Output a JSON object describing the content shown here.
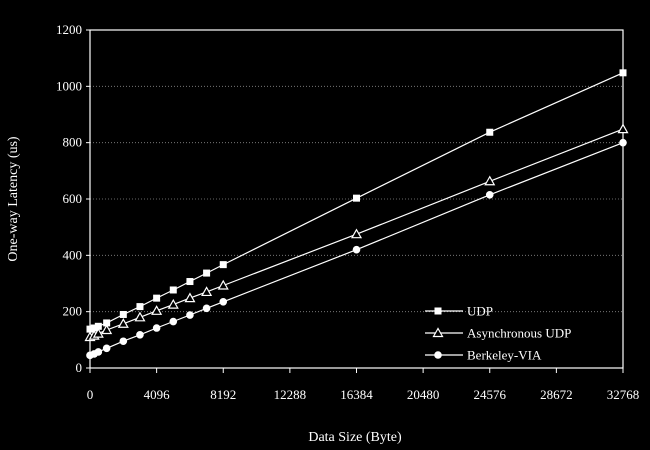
{
  "chart_data": {
    "type": "line",
    "xlabel": "Data Size (Byte)",
    "ylabel": "One-way Latency (us)",
    "xlim": [
      0,
      32768
    ],
    "ylim": [
      0,
      1200
    ],
    "xticks": [
      0,
      4096,
      8192,
      12288,
      16384,
      20480,
      24576,
      28672,
      32768
    ],
    "yticks": [
      0,
      200,
      400,
      600,
      800,
      1000,
      1200
    ],
    "grid": "horizontal",
    "legend_position": "bottom-right",
    "x": [
      0,
      256,
      512,
      1024,
      2048,
      3072,
      4096,
      5120,
      6144,
      7168,
      8192,
      16384,
      24576,
      32768
    ],
    "series": [
      {
        "name": "UDP",
        "marker": "square",
        "values": [
          138,
          142,
          148,
          160,
          190,
          218,
          248,
          277,
          307,
          337,
          367,
          603,
          837,
          1048
        ]
      },
      {
        "name": "Asynchronous UDP",
        "marker": "triangle",
        "values": [
          110,
          115,
          122,
          135,
          157,
          180,
          203,
          225,
          248,
          270,
          293,
          475,
          663,
          848
        ]
      },
      {
        "name": "Berkeley-VIA",
        "marker": "circle",
        "values": [
          45,
          50,
          57,
          70,
          95,
          118,
          142,
          165,
          188,
          212,
          235,
          420,
          615,
          800
        ]
      }
    ],
    "colors": {
      "background": "#000000",
      "foreground": "#ffffff",
      "grid": "#888888"
    }
  }
}
